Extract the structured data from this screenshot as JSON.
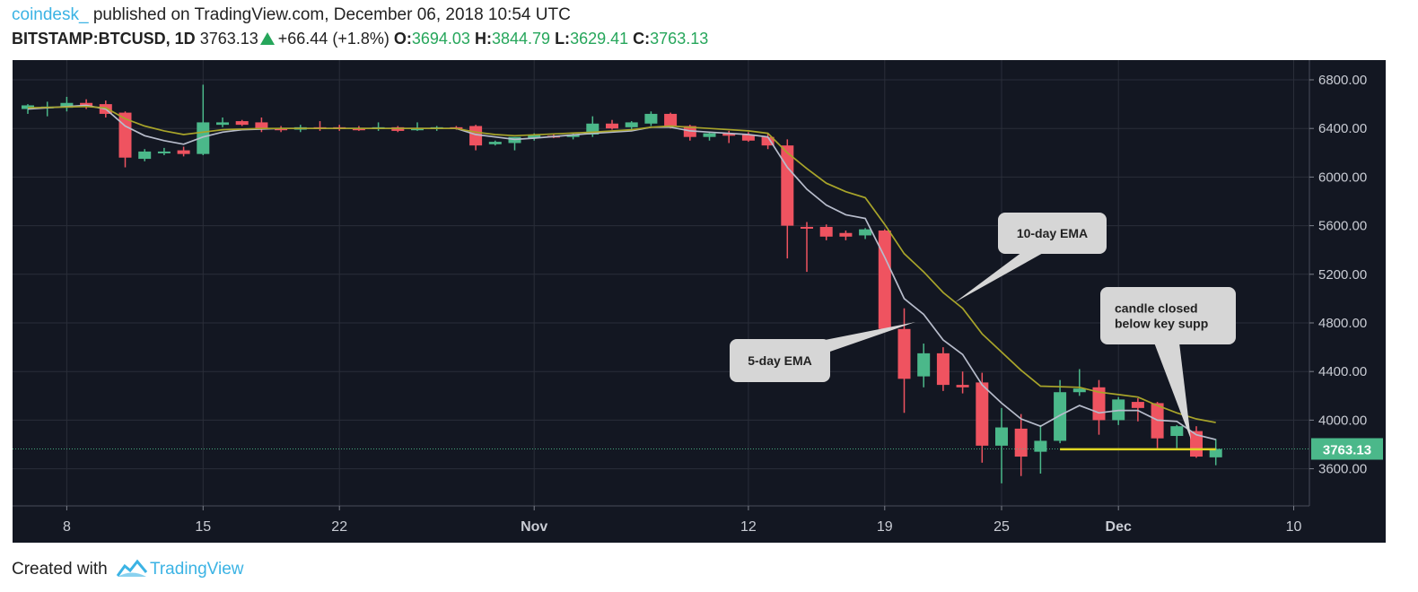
{
  "header": {
    "username": "coindesk_",
    "published_text": "published on TradingView.com, December 06, 2018 10:54 UTC",
    "symbol": "BITSTAMP:BTCUSD, 1D",
    "last": "3763.13",
    "change": "+66.44 (+1.8%)",
    "open_label": "O:",
    "open": "3694.03",
    "high_label": "H:",
    "high": "3844.79",
    "low_label": "L:",
    "low": "3629.41",
    "close_label": "C:",
    "close": "3763.13"
  },
  "footer": {
    "created_with": "Created with",
    "brand": "TradingView"
  },
  "chart_data": {
    "type": "candlestick",
    "title": "",
    "xlabel": "",
    "ylabel": "",
    "ylim": [
      3250,
      6950
    ],
    "grid": true,
    "y_ticks": [
      "6800.00",
      "6400.00",
      "6000.00",
      "5600.00",
      "5200.00",
      "4800.00",
      "4400.00",
      "4000.00",
      "3600.00"
    ],
    "x_ticks": [
      {
        "day": 2,
        "label": "8"
      },
      {
        "day": 9,
        "label": "15"
      },
      {
        "day": 16,
        "label": "22"
      },
      {
        "day": 26,
        "label": "Nov"
      },
      {
        "day": 37,
        "label": "12"
      },
      {
        "day": 44,
        "label": "19"
      },
      {
        "day": 50,
        "label": "25"
      },
      {
        "day": 56,
        "label": "Dec"
      },
      {
        "day": 65,
        "label": "10"
      }
    ],
    "last_price_label": "3763.13",
    "last_price": 3763.13,
    "colors": {
      "up": "#4bb88a",
      "down": "#ef5360",
      "ema5": "#b7bccb",
      "ema10": "#a8a42a",
      "support": "#e0d824",
      "last_line": "#4bb88a"
    },
    "candles": [
      {
        "day": 0,
        "o": 6560,
        "h": 6600,
        "l": 6520,
        "c": 6590
      },
      {
        "day": 1,
        "o": 6570,
        "h": 6620,
        "l": 6500,
        "c": 6580
      },
      {
        "day": 2,
        "o": 6570,
        "h": 6660,
        "l": 6540,
        "c": 6610
      },
      {
        "day": 3,
        "o": 6610,
        "h": 6640,
        "l": 6560,
        "c": 6580
      },
      {
        "day": 4,
        "o": 6600,
        "h": 6630,
        "l": 6490,
        "c": 6520
      },
      {
        "day": 5,
        "o": 6530,
        "h": 6540,
        "l": 6080,
        "c": 6160
      },
      {
        "day": 6,
        "o": 6150,
        "h": 6230,
        "l": 6130,
        "c": 6210
      },
      {
        "day": 7,
        "o": 6200,
        "h": 6240,
        "l": 6180,
        "c": 6210
      },
      {
        "day": 8,
        "o": 6220,
        "h": 6250,
        "l": 6170,
        "c": 6190
      },
      {
        "day": 9,
        "o": 6190,
        "h": 6760,
        "l": 6180,
        "c": 6450
      },
      {
        "day": 10,
        "o": 6430,
        "h": 6490,
        "l": 6410,
        "c": 6450
      },
      {
        "day": 11,
        "o": 6460,
        "h": 6470,
        "l": 6420,
        "c": 6430
      },
      {
        "day": 12,
        "o": 6450,
        "h": 6490,
        "l": 6370,
        "c": 6400
      },
      {
        "day": 13,
        "o": 6400,
        "h": 6420,
        "l": 6370,
        "c": 6390
      },
      {
        "day": 14,
        "o": 6390,
        "h": 6430,
        "l": 6370,
        "c": 6410
      },
      {
        "day": 15,
        "o": 6410,
        "h": 6460,
        "l": 6380,
        "c": 6400
      },
      {
        "day": 16,
        "o": 6410,
        "h": 6430,
        "l": 6380,
        "c": 6400
      },
      {
        "day": 17,
        "o": 6400,
        "h": 6420,
        "l": 6380,
        "c": 6390
      },
      {
        "day": 18,
        "o": 6400,
        "h": 6450,
        "l": 6380,
        "c": 6410
      },
      {
        "day": 19,
        "o": 6410,
        "h": 6420,
        "l": 6370,
        "c": 6380
      },
      {
        "day": 20,
        "o": 6390,
        "h": 6450,
        "l": 6380,
        "c": 6400
      },
      {
        "day": 21,
        "o": 6400,
        "h": 6420,
        "l": 6380,
        "c": 6410
      },
      {
        "day": 22,
        "o": 6410,
        "h": 6420,
        "l": 6390,
        "c": 6400
      },
      {
        "day": 23,
        "o": 6420,
        "h": 6430,
        "l": 6220,
        "c": 6260
      },
      {
        "day": 24,
        "o": 6270,
        "h": 6300,
        "l": 6260,
        "c": 6290
      },
      {
        "day": 25,
        "o": 6280,
        "h": 6320,
        "l": 6220,
        "c": 6330
      },
      {
        "day": 26,
        "o": 6320,
        "h": 6360,
        "l": 6300,
        "c": 6350
      },
      {
        "day": 27,
        "o": 6340,
        "h": 6360,
        "l": 6320,
        "c": 6330
      },
      {
        "day": 28,
        "o": 6330,
        "h": 6360,
        "l": 6310,
        "c": 6350
      },
      {
        "day": 29,
        "o": 6350,
        "h": 6500,
        "l": 6330,
        "c": 6440
      },
      {
        "day": 30,
        "o": 6440,
        "h": 6470,
        "l": 6390,
        "c": 6400
      },
      {
        "day": 31,
        "o": 6410,
        "h": 6460,
        "l": 6380,
        "c": 6450
      },
      {
        "day": 32,
        "o": 6440,
        "h": 6540,
        "l": 6420,
        "c": 6520
      },
      {
        "day": 33,
        "o": 6520,
        "h": 6530,
        "l": 6400,
        "c": 6420
      },
      {
        "day": 34,
        "o": 6420,
        "h": 6430,
        "l": 6300,
        "c": 6330
      },
      {
        "day": 35,
        "o": 6330,
        "h": 6370,
        "l": 6300,
        "c": 6360
      },
      {
        "day": 36,
        "o": 6360,
        "h": 6380,
        "l": 6280,
        "c": 6340
      },
      {
        "day": 37,
        "o": 6350,
        "h": 6370,
        "l": 6290,
        "c": 6300
      },
      {
        "day": 38,
        "o": 6330,
        "h": 6360,
        "l": 6230,
        "c": 6260
      },
      {
        "day": 39,
        "o": 6260,
        "h": 6310,
        "l": 5330,
        "c": 5600
      },
      {
        "day": 40,
        "o": 5590,
        "h": 5630,
        "l": 5220,
        "c": 5580
      },
      {
        "day": 41,
        "o": 5590,
        "h": 5610,
        "l": 5480,
        "c": 5510
      },
      {
        "day": 42,
        "o": 5540,
        "h": 5560,
        "l": 5480,
        "c": 5510
      },
      {
        "day": 43,
        "o": 5520,
        "h": 5580,
        "l": 5490,
        "c": 5570
      },
      {
        "day": 44,
        "o": 5560,
        "h": 5570,
        "l": 4730,
        "c": 4750
      },
      {
        "day": 45,
        "o": 4750,
        "h": 4920,
        "l": 4060,
        "c": 4340
      },
      {
        "day": 46,
        "o": 4360,
        "h": 4630,
        "l": 4270,
        "c": 4550
      },
      {
        "day": 47,
        "o": 4550,
        "h": 4600,
        "l": 4240,
        "c": 4290
      },
      {
        "day": 48,
        "o": 4290,
        "h": 4400,
        "l": 4220,
        "c": 4270
      },
      {
        "day": 49,
        "o": 4310,
        "h": 4390,
        "l": 3650,
        "c": 3790
      },
      {
        "day": 50,
        "o": 3790,
        "h": 4100,
        "l": 3480,
        "c": 3940
      },
      {
        "day": 51,
        "o": 3930,
        "h": 4050,
        "l": 3540,
        "c": 3700
      },
      {
        "day": 52,
        "o": 3740,
        "h": 3960,
        "l": 3560,
        "c": 3830
      },
      {
        "day": 53,
        "o": 3830,
        "h": 4330,
        "l": 3810,
        "c": 4230
      },
      {
        "day": 54,
        "o": 4230,
        "h": 4420,
        "l": 4200,
        "c": 4260
      },
      {
        "day": 55,
        "o": 4270,
        "h": 4330,
        "l": 3880,
        "c": 4000
      },
      {
        "day": 56,
        "o": 4000,
        "h": 4190,
        "l": 3960,
        "c": 4170
      },
      {
        "day": 57,
        "o": 4150,
        "h": 4180,
        "l": 3990,
        "c": 4100
      },
      {
        "day": 58,
        "o": 4140,
        "h": 4150,
        "l": 3770,
        "c": 3850
      },
      {
        "day": 59,
        "o": 3870,
        "h": 3960,
        "l": 3770,
        "c": 3950
      },
      {
        "day": 60,
        "o": 3910,
        "h": 3950,
        "l": 3690,
        "c": 3700
      },
      {
        "day": 61,
        "o": 3694,
        "h": 3845,
        "l": 3629,
        "c": 3763
      }
    ],
    "series": [
      {
        "name": "5-day EMA",
        "points": [
          [
            0,
            6560
          ],
          [
            3,
            6590
          ],
          [
            4,
            6560
          ],
          [
            5,
            6420
          ],
          [
            6,
            6340
          ],
          [
            7,
            6300
          ],
          [
            8,
            6270
          ],
          [
            9,
            6330
          ],
          [
            10,
            6370
          ],
          [
            11,
            6390
          ],
          [
            13,
            6400
          ],
          [
            20,
            6400
          ],
          [
            22,
            6400
          ],
          [
            23,
            6350
          ],
          [
            24,
            6330
          ],
          [
            25,
            6310
          ],
          [
            26,
            6320
          ],
          [
            29,
            6360
          ],
          [
            31,
            6380
          ],
          [
            32,
            6410
          ],
          [
            33,
            6410
          ],
          [
            34,
            6380
          ],
          [
            35,
            6370
          ],
          [
            37,
            6350
          ],
          [
            38,
            6330
          ],
          [
            39,
            6080
          ],
          [
            40,
            5900
          ],
          [
            41,
            5770
          ],
          [
            42,
            5690
          ],
          [
            43,
            5660
          ],
          [
            44,
            5340
          ],
          [
            45,
            5000
          ],
          [
            46,
            4870
          ],
          [
            47,
            4660
          ],
          [
            48,
            4540
          ],
          [
            49,
            4290
          ],
          [
            50,
            4140
          ],
          [
            51,
            4010
          ],
          [
            52,
            3950
          ],
          [
            53,
            4040
          ],
          [
            54,
            4120
          ],
          [
            55,
            4060
          ],
          [
            56,
            4080
          ],
          [
            57,
            4080
          ],
          [
            58,
            4000
          ],
          [
            59,
            3990
          ],
          [
            60,
            3880
          ],
          [
            61,
            3840
          ]
        ]
      },
      {
        "name": "10-day EMA",
        "points": [
          [
            0,
            6570
          ],
          [
            3,
            6580
          ],
          [
            4,
            6570
          ],
          [
            5,
            6480
          ],
          [
            6,
            6420
          ],
          [
            7,
            6380
          ],
          [
            8,
            6350
          ],
          [
            9,
            6370
          ],
          [
            10,
            6390
          ],
          [
            12,
            6400
          ],
          [
            22,
            6400
          ],
          [
            23,
            6370
          ],
          [
            24,
            6350
          ],
          [
            25,
            6340
          ],
          [
            29,
            6370
          ],
          [
            31,
            6390
          ],
          [
            32,
            6410
          ],
          [
            33,
            6420
          ],
          [
            35,
            6400
          ],
          [
            37,
            6380
          ],
          [
            38,
            6360
          ],
          [
            39,
            6200
          ],
          [
            40,
            6070
          ],
          [
            41,
            5950
          ],
          [
            42,
            5880
          ],
          [
            43,
            5830
          ],
          [
            44,
            5610
          ],
          [
            45,
            5370
          ],
          [
            46,
            5220
          ],
          [
            47,
            5050
          ],
          [
            48,
            4920
          ],
          [
            49,
            4710
          ],
          [
            50,
            4560
          ],
          [
            51,
            4410
          ],
          [
            52,
            4280
          ],
          [
            54,
            4270
          ],
          [
            55,
            4230
          ],
          [
            56,
            4210
          ],
          [
            57,
            4190
          ],
          [
            58,
            4120
          ],
          [
            59,
            4060
          ],
          [
            60,
            4010
          ],
          [
            61,
            3980
          ]
        ]
      }
    ],
    "support_line": {
      "from_day": 53,
      "to_day": 61,
      "value": 3760
    },
    "annotations": [
      {
        "text": "10-day EMA",
        "lines": [
          "10-day EMA"
        ]
      },
      {
        "text": "5-day EMA",
        "lines": [
          "5-day EMA"
        ]
      },
      {
        "text": "candle closed below key supp",
        "lines": [
          "candle closed",
          "below key supp"
        ]
      }
    ]
  }
}
